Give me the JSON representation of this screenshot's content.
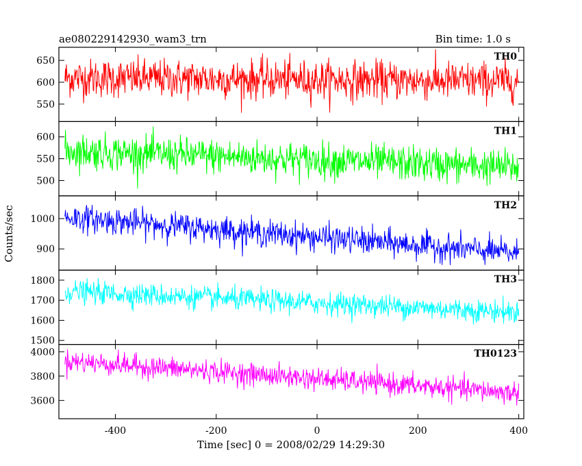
{
  "chart_data": {
    "type": "line",
    "title": "ae080229142930_wam3_trn",
    "subtitle": "Bin time: 1.0 s",
    "xlabel": "Time [sec] 0 = 2008/02/29 14:29:30",
    "ylabel": "Counts/sec",
    "xlim": [
      -512,
      410
    ],
    "x_ticks": [
      -400,
      -200,
      0,
      200,
      400
    ],
    "x_range_data": [
      -500,
      400
    ],
    "bin_time": 1.0,
    "series": [
      {
        "name": "TH0",
        "color": "#ff0000",
        "ylim": [
          510,
          680
        ],
        "y_ticks": [
          550,
          600,
          650
        ],
        "mean_start": 610,
        "mean_end": 602,
        "noise": 22
      },
      {
        "name": "TH1",
        "color": "#00ff00",
        "ylim": [
          465,
          635
        ],
        "y_ticks": [
          500,
          550,
          600
        ],
        "mean_start": 568,
        "mean_end": 530,
        "noise": 20
      },
      {
        "name": "TH2",
        "color": "#0000ff",
        "ylim": [
          830,
          1075
        ],
        "y_ticks": [
          900,
          1000
        ],
        "mean_start": 1005,
        "mean_end": 885,
        "noise": 22
      },
      {
        "name": "TH3",
        "color": "#00ffff",
        "ylim": [
          1480,
          1850
        ],
        "y_ticks": [
          1500,
          1600,
          1700,
          1800
        ],
        "mean_start": 1745,
        "mean_end": 1640,
        "noise": 28
      },
      {
        "name": "TH0123",
        "color": "#ff00ff",
        "ylim": [
          3450,
          4060
        ],
        "y_ticks": [
          3600,
          3800,
          4000
        ],
        "mean_start": 3925,
        "mean_end": 3660,
        "noise": 45
      }
    ]
  }
}
